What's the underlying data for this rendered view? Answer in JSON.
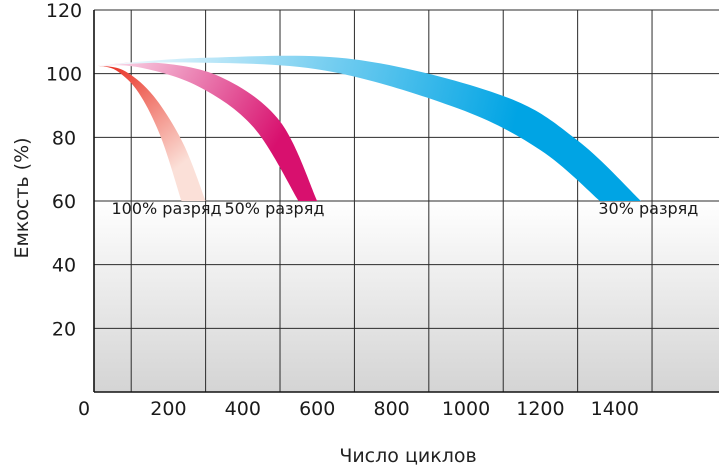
{
  "chart_data": {
    "type": "area",
    "title": "",
    "xlabel": "Число циклов",
    "ylabel": "Емкость (%)",
    "xlim": [
      0,
      1680
    ],
    "ylim": [
      0,
      120
    ],
    "x_ticks": [
      200,
      400,
      600,
      800,
      1000,
      1200,
      1400
    ],
    "x_tick_labels": [
      "200",
      "400",
      "600",
      "800",
      "1000",
      "1200",
      "1400"
    ],
    "x_origin_label": "0",
    "y_ticks": [
      20,
      40,
      60,
      80,
      100,
      120
    ],
    "y_tick_labels": [
      "20",
      "40",
      "60",
      "80",
      "100",
      "120"
    ],
    "x_grid": [
      0,
      100,
      300,
      500,
      700,
      900,
      1100,
      1300,
      1500
    ],
    "grid": true,
    "series": [
      {
        "name": "100% разряд",
        "color_start": "#e8281c",
        "color_end": "#fbe0d8",
        "upper": {
          "x": [
            10,
            80,
            160,
            240,
            300
          ],
          "y": [
            102.5,
            101,
            93,
            78,
            60
          ]
        },
        "lower": {
          "x": [
            10,
            60,
            120,
            180,
            235
          ],
          "y": [
            102.5,
            101,
            94,
            80,
            60
          ]
        }
      },
      {
        "name": "50% разряд",
        "color_start": "#fbe3ee",
        "color_end": "#d8106e",
        "upper": {
          "x": [
            10,
            160,
            340,
            500,
            600
          ],
          "y": [
            102.5,
            103.5,
            99,
            85,
            60
          ]
        },
        "lower": {
          "x": [
            10,
            120,
            280,
            430,
            550
          ],
          "y": [
            102.5,
            102,
            96,
            83,
            60
          ]
        }
      },
      {
        "name": "30% разряд",
        "color_start": "#ffffff",
        "color_end": "#00a4e4",
        "upper": {
          "x": [
            0,
            300,
            700,
            1100,
            1300,
            1470
          ],
          "y": [
            102.5,
            105,
            104.5,
            93,
            79,
            60
          ]
        },
        "lower": {
          "x": [
            0,
            260,
            620,
            980,
            1200,
            1360
          ],
          "y": [
            102.5,
            103.5,
            101,
            89,
            76,
            60
          ]
        }
      }
    ],
    "labels": [
      {
        "text": "100% разряд",
        "x": 195,
        "y": 57.5
      },
      {
        "text": "50% разряд",
        "x": 485,
        "y": 57.5
      },
      {
        "text": "30% разряд",
        "x": 1490,
        "y": 57.5
      }
    ]
  }
}
